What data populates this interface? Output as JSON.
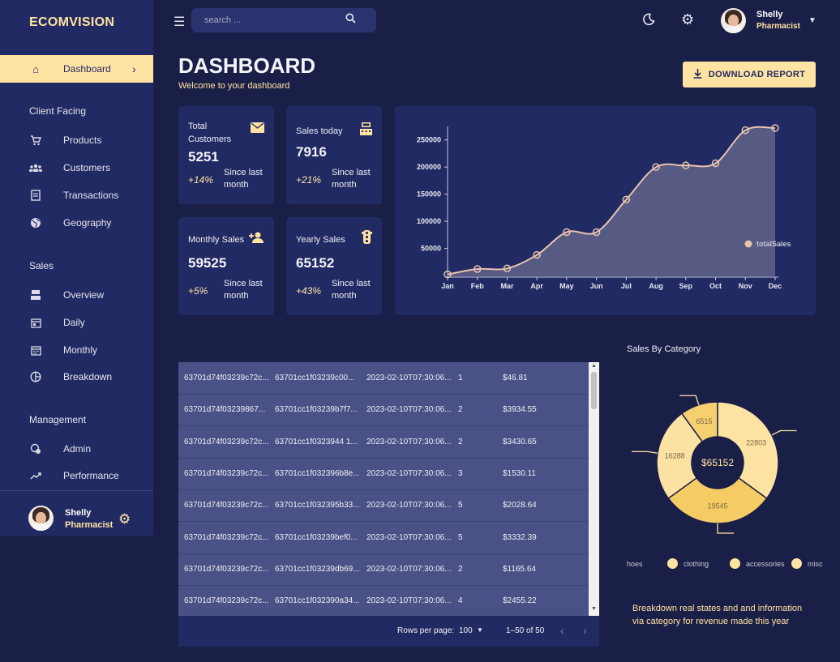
{
  "brand": "ECOMVISION",
  "nav": {
    "dashboard": "Dashboard",
    "sections": {
      "client": "Client Facing",
      "sales": "Sales",
      "management": "Management"
    },
    "products": "Products",
    "customers": "Customers",
    "transactions": "Transactions",
    "geography": "Geography",
    "overview": "Overview",
    "daily": "Daily",
    "monthly": "Monthly",
    "breakdown": "Breakdown",
    "admin": "Admin",
    "performance": "Performance"
  },
  "user": {
    "name": "Shelly",
    "role": "Pharmacist"
  },
  "search": {
    "placeholder": "search ..."
  },
  "header": {
    "title": "DASHBOARD",
    "subtitle": "Welcome to your dashboard",
    "download": "DOWNLOAD REPORT"
  },
  "stats": [
    {
      "title": "Total Customers",
      "value": "5251",
      "pct": "+14%",
      "since": "Since last month"
    },
    {
      "title": "Sales today",
      "value": "7916",
      "pct": "+21%",
      "since": "Since last month"
    },
    {
      "title": "Monthly Sales",
      "value": "59525",
      "pct": "+5%",
      "since": "Since last month"
    },
    {
      "title": "Yearly Sales",
      "value": "65152",
      "pct": "+43%",
      "since": "Since last month"
    }
  ],
  "chart_data": {
    "type": "area",
    "categories": [
      "Jan",
      "Feb",
      "Mar",
      "Apr",
      "May",
      "Jun",
      "Jul",
      "Aug",
      "Sep",
      "Oct",
      "Nov",
      "Dec"
    ],
    "series": [
      {
        "name": "totalSales",
        "values": [
          2000,
          12000,
          13000,
          38000,
          80000,
          80000,
          140000,
          200000,
          203000,
          207000,
          268000,
          272000
        ]
      }
    ],
    "yticks": [
      50000,
      100000,
      150000,
      200000,
      250000
    ],
    "ylim": [
      0,
      275000
    ],
    "legend": "right",
    "colors": {
      "line": "#e8c4b0",
      "fill": "#6a6b8c"
    }
  },
  "table": {
    "rows": [
      [
        "63701d74f03239c72c...",
        "63701cc1f03239c00...",
        "2023-02-10T07:30:06...",
        "1",
        "$46.81"
      ],
      [
        "63701d74f03239867...",
        "63701cc1f03239b7f7...",
        "2023-02-10T07:30:06...",
        "2",
        "$3934.55"
      ],
      [
        "63701d74f03239c72c...",
        "63701cc1f0323944 1...",
        "2023-02-10T07:30:06...",
        "2",
        "$3430.65"
      ],
      [
        "63701d74f03239c72c...",
        "63701cc1f032396b8e...",
        "2023-02-10T07:30:06...",
        "3",
        "$1530.11"
      ],
      [
        "63701d74f03239c72c...",
        "63701cc1f032395b33...",
        "2023-02-10T07:30:06...",
        "5",
        "$2028.64"
      ],
      [
        "63701d74f03239c72c...",
        "63701cc1f03239bef0...",
        "2023-02-10T07:30:06...",
        "5",
        "$3332.39"
      ],
      [
        "63701d74f03239c72c...",
        "63701cc1f03239db69...",
        "2023-02-10T07:30:06...",
        "2",
        "$1165.64"
      ],
      [
        "63701d74f03239c72c...",
        "63701cc1f032390a34...",
        "2023-02-10T07:30:06...",
        "4",
        "$2455.22"
      ]
    ],
    "rows_per_page_label": "Rows per page:",
    "rows_per_page": "100",
    "range": "1–50 of 50"
  },
  "category": {
    "title": "Sales By Category",
    "total": "$65152",
    "slices": [
      {
        "label": "22803",
        "value": 22803
      },
      {
        "label": "19545",
        "value": 19545
      },
      {
        "label": "16288",
        "value": 16288
      },
      {
        "label": "6515",
        "value": 6515
      }
    ],
    "legend": [
      "hoes",
      "clothing",
      "accessories",
      "misc"
    ],
    "description": "Breakdown real states and and information via category for revenue made this year",
    "colors": {
      "a": "#ffe3a3",
      "b": "#f5cc63",
      "c": "#fbe2a2",
      "d": "#f6d070"
    }
  }
}
